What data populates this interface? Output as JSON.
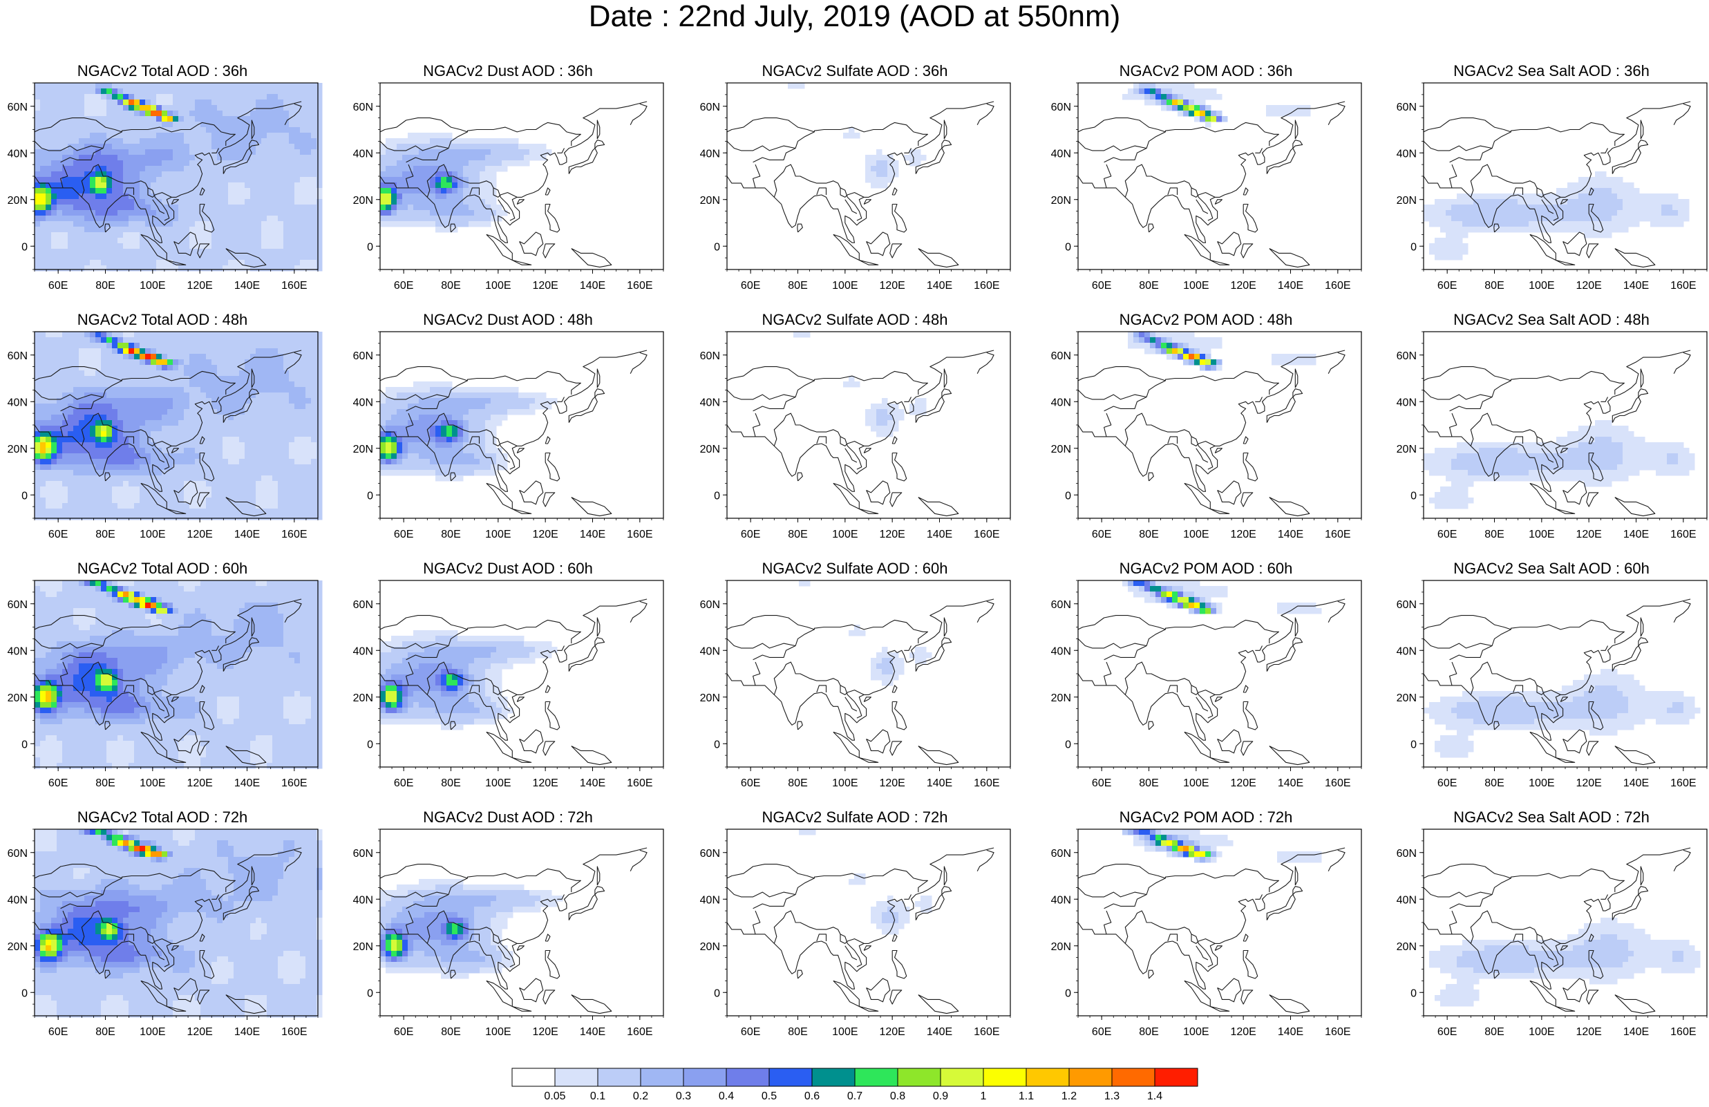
{
  "title": "Date : 22nd July, 2019 (AOD at 550nm)",
  "colors": {
    "coastline": "#1a1a1a",
    "frame": "#000000"
  },
  "lat_ticks": [
    "60N",
    "40N",
    "20N",
    "0"
  ],
  "lon_ticks": [
    "60E",
    "80E",
    "100E",
    "120E",
    "140E",
    "160E"
  ],
  "panels": [
    {
      "title": "NGACv2 Total AOD : 36h",
      "species": "total",
      "hour": 36
    },
    {
      "title": "NGACv2 Dust AOD : 36h",
      "species": "dust",
      "hour": 36
    },
    {
      "title": "NGACv2 Sulfate AOD : 36h",
      "species": "sulfate",
      "hour": 36
    },
    {
      "title": "NGACv2 POM AOD : 36h",
      "species": "pom",
      "hour": 36
    },
    {
      "title": "NGACv2 Sea Salt AOD : 36h",
      "species": "seasalt",
      "hour": 36
    },
    {
      "title": "NGACv2 Total AOD : 48h",
      "species": "total",
      "hour": 48
    },
    {
      "title": "NGACv2 Dust AOD : 48h",
      "species": "dust",
      "hour": 48
    },
    {
      "title": "NGACv2 Sulfate AOD : 48h",
      "species": "sulfate",
      "hour": 48
    },
    {
      "title": "NGACv2 POM AOD : 48h",
      "species": "pom",
      "hour": 48
    },
    {
      "title": "NGACv2 Sea Salt AOD : 48h",
      "species": "seasalt",
      "hour": 48
    },
    {
      "title": "NGACv2 Total AOD : 60h",
      "species": "total",
      "hour": 60
    },
    {
      "title": "NGACv2 Dust AOD : 60h",
      "species": "dust",
      "hour": 60
    },
    {
      "title": "NGACv2 Sulfate AOD : 60h",
      "species": "sulfate",
      "hour": 60
    },
    {
      "title": "NGACv2 POM AOD : 60h",
      "species": "pom",
      "hour": 60
    },
    {
      "title": "NGACv2 Sea Salt AOD : 60h",
      "species": "seasalt",
      "hour": 60
    },
    {
      "title": "NGACv2 Total AOD : 72h",
      "species": "total",
      "hour": 72
    },
    {
      "title": "NGACv2 Dust AOD : 72h",
      "species": "dust",
      "hour": 72
    },
    {
      "title": "NGACv2 Sulfate AOD : 72h",
      "species": "sulfate",
      "hour": 72
    },
    {
      "title": "NGACv2 POM AOD : 72h",
      "species": "pom",
      "hour": 72
    },
    {
      "title": "NGACv2 Sea Salt  AOD : 72h",
      "species": "seasalt",
      "hour": 72
    }
  ],
  "colorbar": {
    "labels": [
      "0.05",
      "0.1",
      "0.2",
      "0.3",
      "0.4",
      "0.5",
      "0.6",
      "0.7",
      "0.8",
      "0.9",
      "1",
      "1.1",
      "1.2",
      "1.3",
      "1.4"
    ],
    "colors": [
      "#ffffff",
      "#d8e2fa",
      "#bccdf7",
      "#a0b7f4",
      "#8aa0f0",
      "#6f7eea",
      "#2a5ef2",
      "#00908e",
      "#2ee65a",
      "#8ee62a",
      "#d6fa38",
      "#fcff00",
      "#ffc800",
      "#ff9a00",
      "#ff6a00",
      "#ff1e00"
    ]
  },
  "map_domain": {
    "lon_range": [
      50,
      170
    ],
    "lat_range": [
      -10,
      70
    ]
  },
  "fields": {
    "total": {
      "base": 0.12,
      "blobs": [
        {
          "lon": 70,
          "lat": 25,
          "rx": 22,
          "ry": 11,
          "v": 0.4
        },
        {
          "lon": 52,
          "lat": 20,
          "rx": 5,
          "ry": 6,
          "v": 0.85
        },
        {
          "lon": 78,
          "lat": 27,
          "rx": 4,
          "ry": 4,
          "v": 0.55
        },
        {
          "lon": 85,
          "lat": 38,
          "rx": 30,
          "ry": 8,
          "v": 0.22
        },
        {
          "lon": 90,
          "lat": 15,
          "rx": 22,
          "ry": 6,
          "v": 0.2
        },
        {
          "lon": 140,
          "lat": 50,
          "rx": 30,
          "ry": 15,
          "v": 0.12
        }
      ],
      "plume": [
        {
          "lon": 80,
          "lat": 67,
          "v": 0.6
        },
        {
          "lon": 92,
          "lat": 61,
          "v": 0.7
        },
        {
          "lon": 100,
          "lat": 58,
          "v": 0.8
        },
        {
          "lon": 106,
          "lat": 55,
          "v": 1.2
        }
      ]
    },
    "dust": {
      "base": 0.0,
      "blobs": [
        {
          "lon": 68,
          "lat": 28,
          "rx": 22,
          "ry": 14,
          "v": 0.35
        },
        {
          "lon": 52,
          "lat": 20,
          "rx": 5,
          "ry": 6,
          "v": 0.85
        },
        {
          "lon": 78,
          "lat": 27,
          "rx": 5,
          "ry": 4,
          "v": 0.5
        },
        {
          "lon": 95,
          "lat": 40,
          "rx": 25,
          "ry": 5,
          "v": 0.17
        },
        {
          "lon": 85,
          "lat": 14,
          "rx": 15,
          "ry": 5,
          "v": 0.17
        }
      ],
      "plume": []
    },
    "sulfate": {
      "base": 0.0,
      "blobs": [
        {
          "lon": 115,
          "lat": 33,
          "rx": 8,
          "ry": 8,
          "v": 0.12
        },
        {
          "lon": 102,
          "lat": 48,
          "rx": 5,
          "ry": 3,
          "v": 0.08
        },
        {
          "lon": 130,
          "lat": 38,
          "rx": 5,
          "ry": 4,
          "v": 0.08
        },
        {
          "lon": 80,
          "lat": 68,
          "rx": 8,
          "ry": 2,
          "v": 0.07
        }
      ],
      "plume": []
    },
    "pom": {
      "base": 0.0,
      "blobs": [
        {
          "lon": 90,
          "lat": 65,
          "rx": 25,
          "ry": 5,
          "v": 0.1
        },
        {
          "lon": 140,
          "lat": 58,
          "rx": 18,
          "ry": 4,
          "v": 0.07
        }
      ],
      "plume": [
        {
          "lon": 80,
          "lat": 67,
          "v": 0.55
        },
        {
          "lon": 92,
          "lat": 61,
          "v": 0.6
        },
        {
          "lon": 100,
          "lat": 58,
          "v": 0.7
        },
        {
          "lon": 106,
          "lat": 55,
          "v": 1.1
        }
      ]
    },
    "seasalt": {
      "base": 0.0,
      "blobs": [
        {
          "lon": 80,
          "lat": 14,
          "rx": 30,
          "ry": 8,
          "v": 0.16
        },
        {
          "lon": 125,
          "lat": 18,
          "rx": 18,
          "ry": 14,
          "v": 0.12
        },
        {
          "lon": 155,
          "lat": 15,
          "rx": 10,
          "ry": 8,
          "v": 0.1
        },
        {
          "lon": 60,
          "lat": -2,
          "rx": 12,
          "ry": 6,
          "v": 0.08
        }
      ],
      "plume": []
    }
  }
}
